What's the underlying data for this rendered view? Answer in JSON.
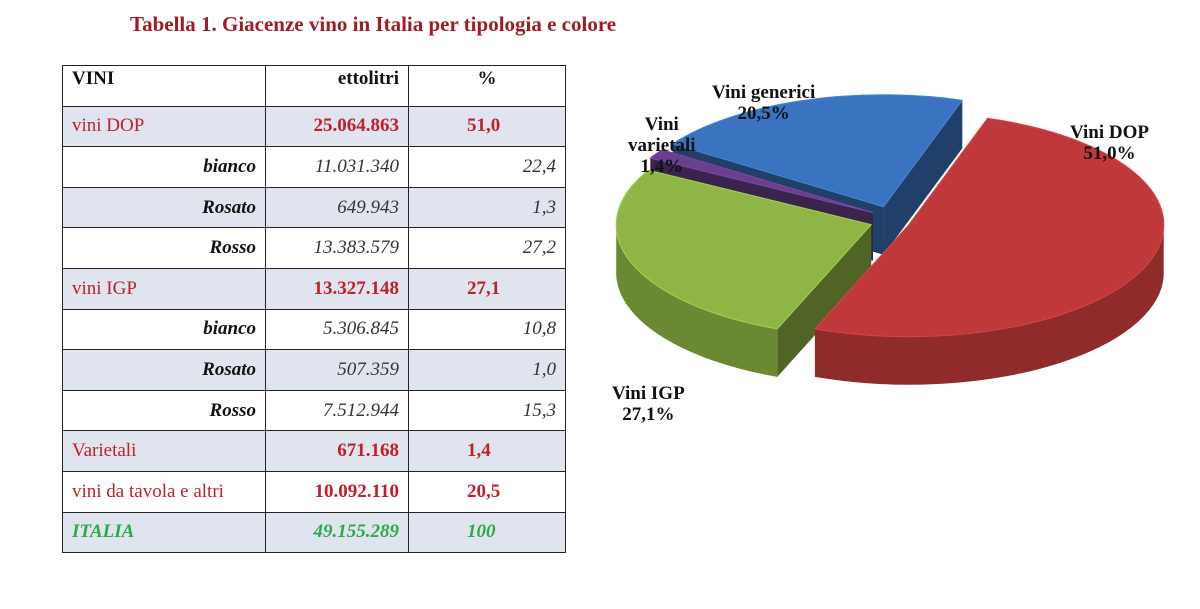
{
  "title": "Tabella 1. Giacenze vino in Italia per tipologia e colore",
  "table": {
    "headers": {
      "vini": "VINI",
      "ettolitri": "ettolitri",
      "pct": "%"
    },
    "rows": [
      {
        "name": "vini DOP",
        "ettolitri": "25.064.863",
        "pct": "51,0"
      },
      {
        "name": "bianco",
        "ettolitri": "11.031.340",
        "pct": "22,4"
      },
      {
        "name": "Rosato",
        "ettolitri": "649.943",
        "pct": "1,3"
      },
      {
        "name": "Rosso",
        "ettolitri": "13.383.579",
        "pct": "27,2"
      },
      {
        "name": "vini IGP",
        "ettolitri": "13.327.148",
        "pct": "27,1"
      },
      {
        "name": "bianco",
        "ettolitri": "5.306.845",
        "pct": "10,8"
      },
      {
        "name": "Rosato",
        "ettolitri": "507.359",
        "pct": "1,0"
      },
      {
        "name": "Rosso",
        "ettolitri": "7.512.944",
        "pct": "15,3"
      },
      {
        "name": "Varietali",
        "ettolitri": "671.168",
        "pct": "1,4"
      },
      {
        "name": "vini da tavola e altri",
        "ettolitri": "10.092.110",
        "pct": "20,5"
      },
      {
        "name": "ITALIA",
        "ettolitri": "49.155.289",
        "pct": "100"
      }
    ]
  },
  "chart_data": {
    "type": "pie",
    "slices": [
      {
        "name": "Vini DOP",
        "value": 51.0,
        "label_value": "51,0%",
        "color": "#c0393a"
      },
      {
        "name": "Vini IGP",
        "value": 27.1,
        "label_value": "27,1%",
        "color": "#8fb644"
      },
      {
        "name": "Vini varietali",
        "value": 1.4,
        "label_value": "1,4%",
        "color": "#6a3f8c"
      },
      {
        "name": "Vini generici",
        "value": 20.5,
        "label_value": "20,5%",
        "color": "#3a74c0"
      }
    ],
    "labels": {
      "dop": {
        "line1": "Vini DOP",
        "line2": "51,0%"
      },
      "igp": {
        "line1": "Vini IGP",
        "line2": "27,1%"
      },
      "varietali": {
        "line1": "Vini",
        "line2": "varietali",
        "line3": "1,4%"
      },
      "generici": {
        "line1": "Vini generici",
        "line2": "20,5%"
      }
    },
    "style": "3d-exploded"
  }
}
